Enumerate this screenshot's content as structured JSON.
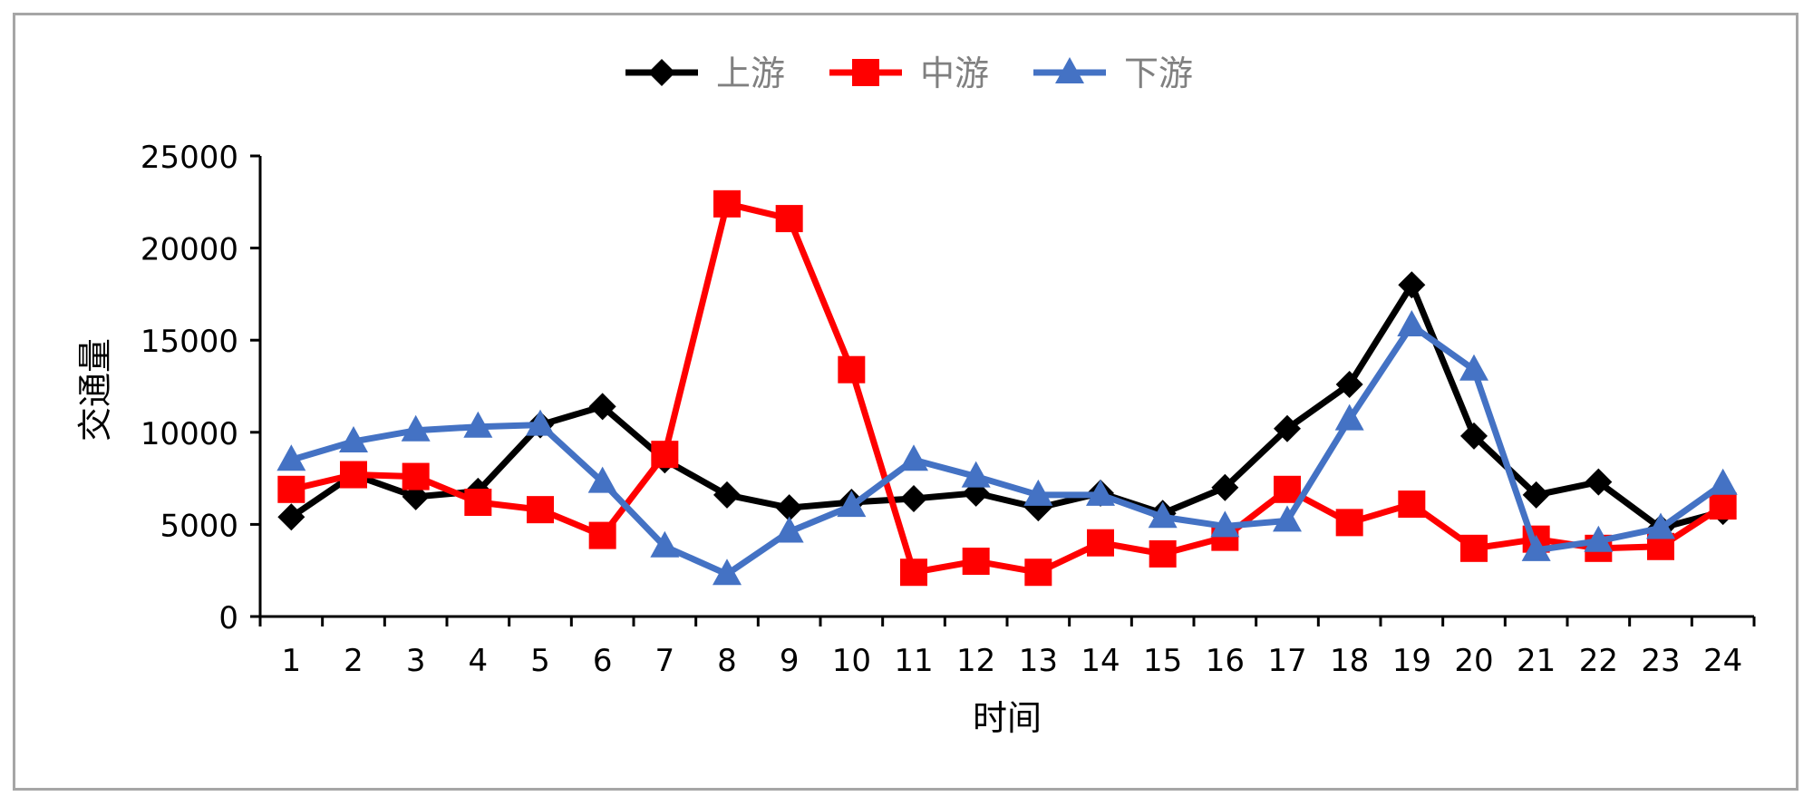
{
  "chart_data": {
    "type": "line",
    "xlabel": "时间",
    "ylabel": "交通量",
    "ylim": [
      0,
      25000
    ],
    "yticks": [
      0,
      5000,
      10000,
      15000,
      20000,
      25000
    ],
    "grid": false,
    "legend_position": "top",
    "categories": [
      "1",
      "2",
      "3",
      "4",
      "5",
      "6",
      "7",
      "8",
      "9",
      "10",
      "11",
      "12",
      "13",
      "14",
      "15",
      "16",
      "17",
      "18",
      "19",
      "20",
      "21",
      "22",
      "23",
      "24"
    ],
    "series": [
      {
        "name": "上游",
        "color": "#000000",
        "marker": "diamond",
        "values": [
          5400,
          7700,
          6500,
          6800,
          10400,
          11400,
          8500,
          6600,
          5900,
          6200,
          6400,
          6700,
          5900,
          6700,
          5600,
          7000,
          10200,
          12600,
          18000,
          9800,
          6600,
          7300,
          4800,
          5700
        ]
      },
      {
        "name": "中游",
        "color": "#ff0000",
        "marker": "square",
        "values": [
          6900,
          7700,
          7600,
          6200,
          5800,
          4400,
          8800,
          22400,
          21600,
          13400,
          2400,
          3000,
          2400,
          4000,
          3400,
          4300,
          6900,
          5100,
          6100,
          3700,
          4200,
          3700,
          3800,
          6000
        ]
      },
      {
        "name": "下游",
        "color": "#4472c4",
        "marker": "triangle",
        "values": [
          8500,
          9500,
          10100,
          10300,
          10400,
          7300,
          3800,
          2300,
          4600,
          6000,
          8500,
          7600,
          6600,
          6600,
          5400,
          4900,
          5200,
          10700,
          15800,
          13400,
          3600,
          4100,
          4800,
          7200
        ]
      }
    ]
  }
}
